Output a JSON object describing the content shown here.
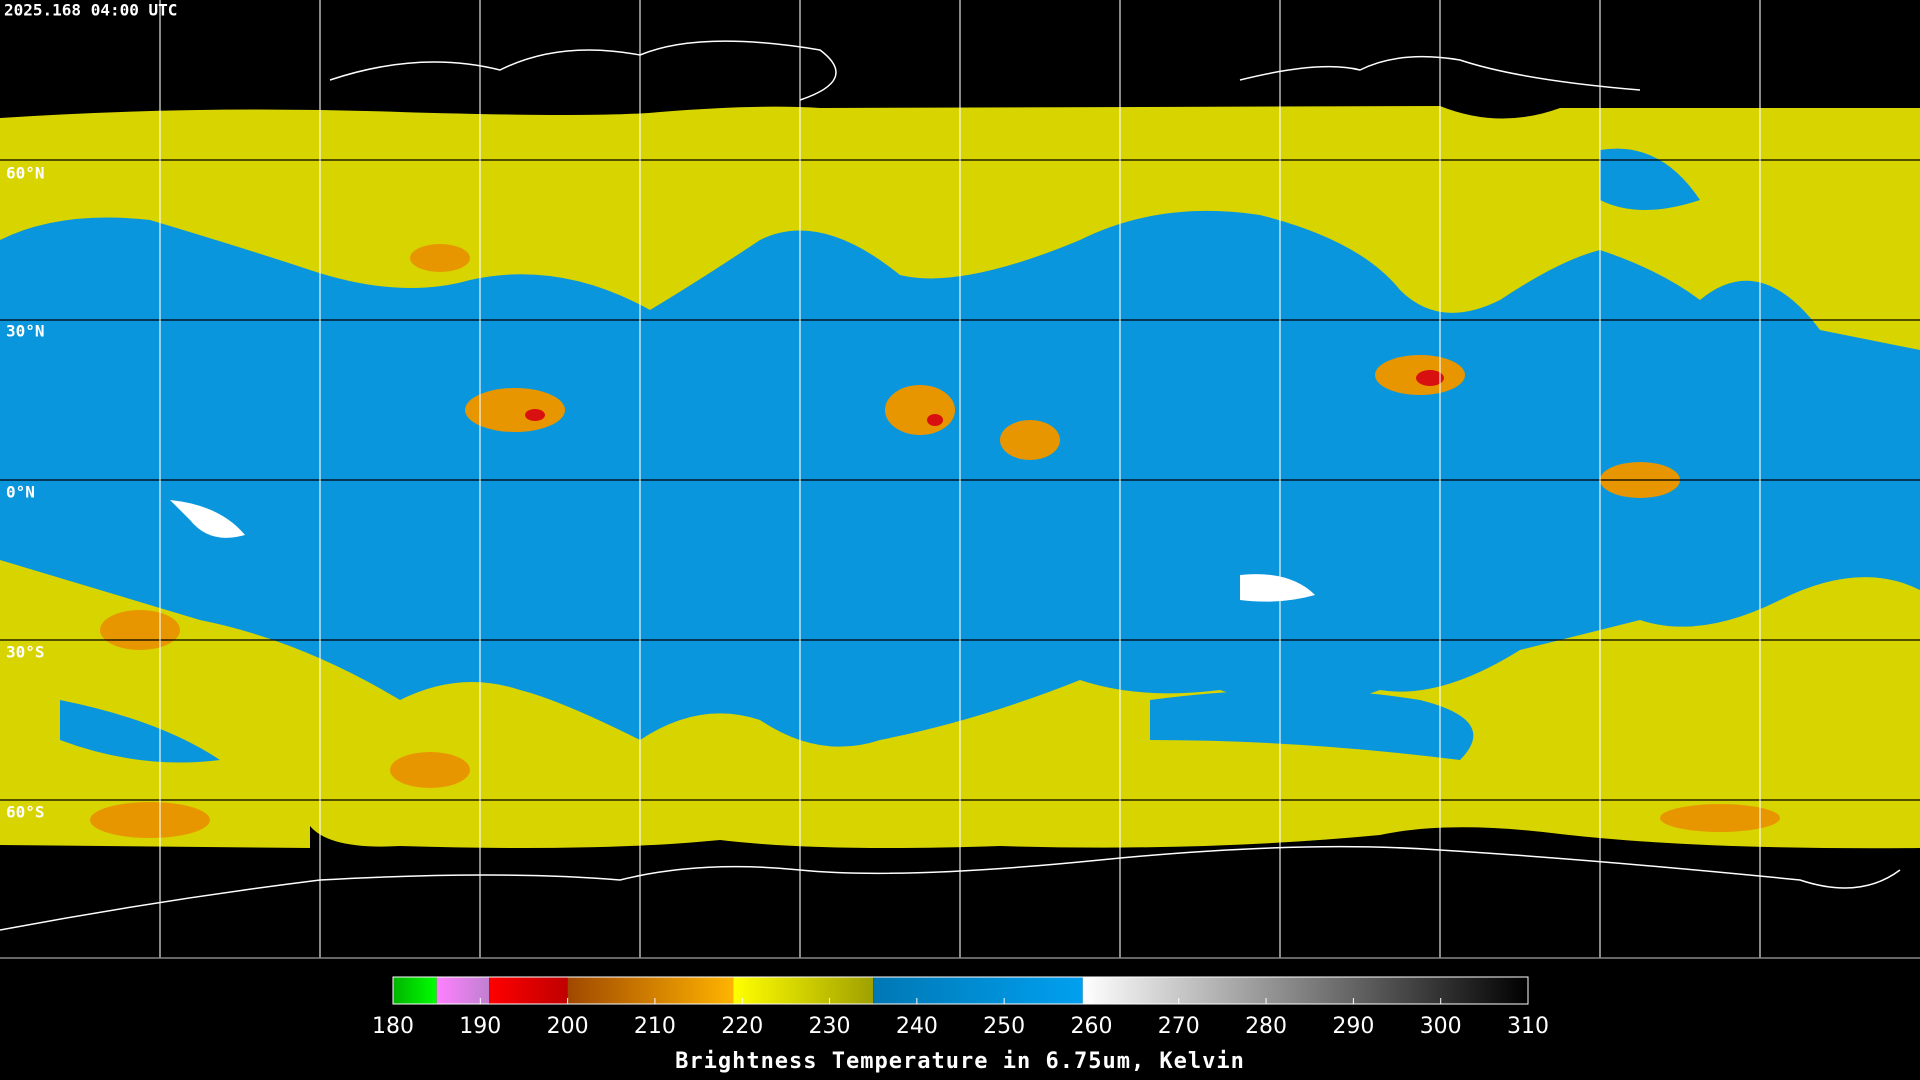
{
  "header": {
    "timestamp": "2025.168 04:00 UTC"
  },
  "map": {
    "lat_labels": [
      "60°N",
      "30°N",
      "0°N",
      "30°S",
      "60°S"
    ]
  },
  "colorbar": {
    "title": "Brightness Temperature in 6.75um, Kelvin",
    "range": [
      180,
      310
    ],
    "ticks": [
      180,
      190,
      200,
      210,
      220,
      230,
      240,
      250,
      260,
      270,
      280,
      290,
      300,
      310
    ],
    "segments": [
      {
        "from": 180,
        "to": 185,
        "color_start": "#00b400",
        "color_end": "#00ff00"
      },
      {
        "from": 185,
        "to": 191,
        "color_start": "#ff80ff",
        "color_end": "#c080d0"
      },
      {
        "from": 191,
        "to": 200,
        "color_start": "#ff0000",
        "color_end": "#c00000"
      },
      {
        "from": 200,
        "to": 219,
        "color_start": "#a04800",
        "color_end": "#ffb400"
      },
      {
        "from": 219,
        "to": 235,
        "color_start": "#ffff00",
        "color_end": "#a0a000"
      },
      {
        "from": 235,
        "to": 259,
        "color_start": "#0078b4",
        "color_end": "#00a0f0"
      },
      {
        "from": 259,
        "to": 310,
        "color_start": "#ffffff",
        "color_end": "#000000"
      }
    ]
  }
}
